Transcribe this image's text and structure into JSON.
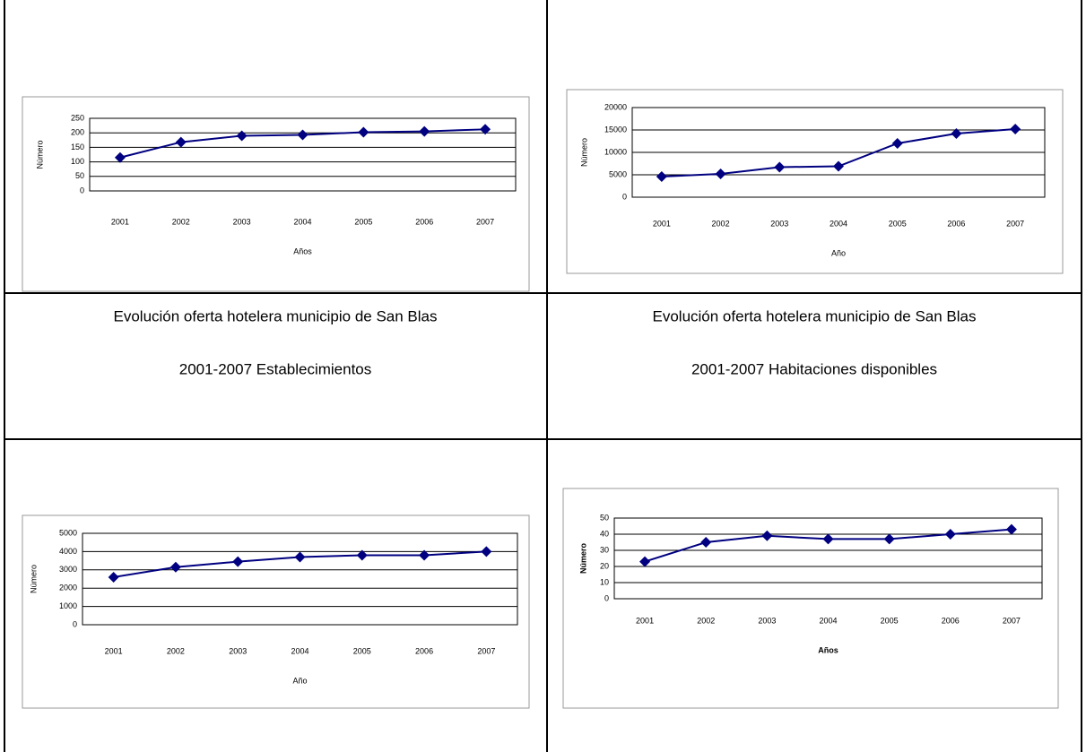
{
  "chart_data": [
    {
      "type": "line",
      "categories": [
        "2001",
        "2002",
        "2003",
        "2004",
        "2005",
        "2006",
        "2007"
      ],
      "series": [
        {
          "color": "#000080",
          "values": [
            115,
            168,
            190,
            193,
            202,
            205,
            212
          ]
        }
      ],
      "xlabel": "Años",
      "ylabel": "Número",
      "ylim": [
        0,
        250
      ],
      "yticks": [
        0,
        50,
        100,
        150,
        200,
        250
      ],
      "grid": true
    },
    {
      "type": "line",
      "categories": [
        "2001",
        "2002",
        "2003",
        "2004",
        "2005",
        "2006",
        "2007"
      ],
      "series": [
        {
          "color": "#000080",
          "values": [
            4600,
            5200,
            6700,
            6900,
            12000,
            14200,
            15200
          ]
        }
      ],
      "xlabel": "Año",
      "ylabel": "Número",
      "ylim": [
        0,
        20000
      ],
      "yticks": [
        0,
        5000,
        10000,
        15000,
        20000
      ],
      "grid": true
    },
    {
      "type": "line",
      "categories": [
        "2001",
        "2002",
        "2003",
        "2004",
        "2005",
        "2006",
        "2007"
      ],
      "series": [
        {
          "color": "#000080",
          "values": [
            2600,
            3150,
            3450,
            3700,
            3800,
            3800,
            4000
          ]
        }
      ],
      "xlabel": "Año",
      "ylabel": "Número",
      "ylim": [
        0,
        5000
      ],
      "yticks": [
        0,
        1000,
        2000,
        3000,
        4000,
        5000
      ],
      "grid": true
    },
    {
      "type": "line",
      "categories": [
        "2001",
        "2002",
        "2003",
        "2004",
        "2005",
        "2006",
        "2007"
      ],
      "series": [
        {
          "color": "#000080",
          "values": [
            23,
            35,
            39,
            37,
            37,
            40,
            43
          ]
        }
      ],
      "xlabel": "Años",
      "ylabel": "Número",
      "ylim": [
        0,
        50
      ],
      "yticks": [
        0,
        10,
        20,
        30,
        40,
        50
      ],
      "grid": true
    }
  ],
  "captions": [
    {
      "line1": "Evolución oferta hotelera municipio de San Blas",
      "line2": "2001-2007 Establecimientos"
    },
    {
      "line1": "Evolución oferta hotelera municipio de San Blas",
      "line2": "2001-2007 Habitaciones disponibles"
    }
  ]
}
